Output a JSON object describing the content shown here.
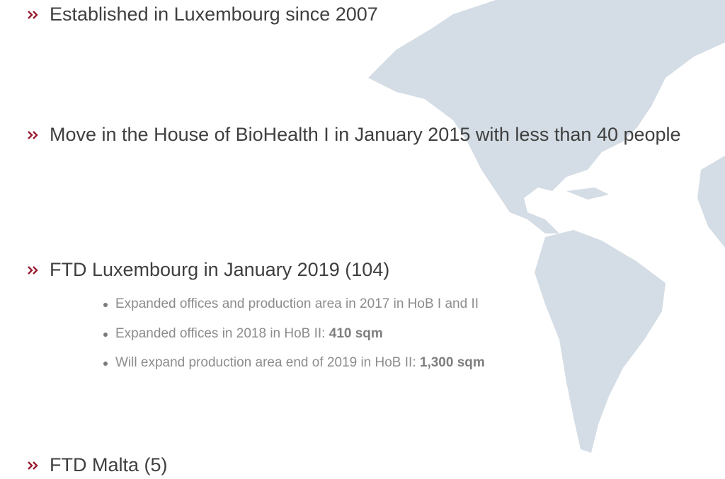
{
  "bullets": [
    {
      "text": "Established in Luxembourg since 2007"
    },
    {
      "text": "Move in the House of BioHealth I in January 2015 with less than 40 people"
    },
    {
      "text": "FTD Luxembourg in January 2019 (104)",
      "subitems": [
        {
          "text": "Expanded offices and production area in 2017 in HoB I and II"
        },
        {
          "text": "Expanded offices in 2018 in HoB II:",
          "bold": "410 sqm"
        },
        {
          "text": "Will expand production area end of 2019 in HoB II:",
          "bold": "1,300 sqm"
        }
      ]
    },
    {
      "text": "FTD Malta (5)"
    }
  ]
}
